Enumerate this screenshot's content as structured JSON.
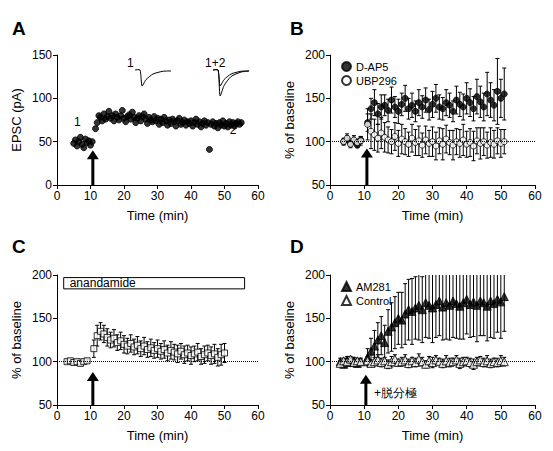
{
  "chart_data": [
    {
      "panel": "A",
      "type": "scatter",
      "x_label": "Time (min)",
      "y_label": "EPSC (pA)",
      "xlim": [
        0,
        60
      ],
      "xticks": [
        0,
        10,
        20,
        30,
        40,
        50,
        60
      ],
      "ylim": [
        0,
        150
      ],
      "yticks": [
        0,
        50,
        100,
        150
      ],
      "grid": false,
      "series": [
        {
          "color": "#000000",
          "marker": "filled_circle",
          "x": [
            5,
            5.5,
            6,
            6.5,
            7,
            7.5,
            8,
            8.5,
            9,
            9.5,
            10,
            10.5,
            11.5,
            12,
            12.5,
            13,
            13.5,
            14,
            14.5,
            15,
            15.5,
            16,
            16.5,
            17,
            17.5,
            18,
            18.5,
            19,
            19.5,
            20,
            20.5,
            21,
            21.5,
            22,
            22.5,
            23,
            23.5,
            24,
            24.5,
            25,
            25.5,
            26,
            26.5,
            27,
            27.5,
            28,
            28.5,
            29,
            29.5,
            30,
            30.5,
            31,
            31.5,
            32,
            32.5,
            33,
            33.5,
            34,
            34.5,
            35,
            35.5,
            36,
            36.5,
            37,
            37.5,
            38,
            38.5,
            39,
            39.5,
            40,
            40.5,
            41,
            41.5,
            42,
            42.5,
            43,
            43.5,
            44,
            44.5,
            45,
            45.5,
            46,
            46.5,
            47,
            47.5,
            48,
            48.5,
            49,
            49.5,
            50,
            50.5,
            51,
            51.5,
            52,
            52.5,
            53,
            53.5,
            54,
            54.5,
            55
          ],
          "values": [
            48,
            52,
            45,
            50,
            55,
            47,
            43,
            53,
            49,
            51,
            46,
            50,
            65,
            72,
            80,
            78,
            74,
            82,
            76,
            79,
            85,
            77,
            80,
            74,
            82,
            78,
            75,
            80,
            86,
            77,
            73,
            79,
            81,
            76,
            84,
            78,
            72,
            77,
            80,
            74,
            79,
            82,
            76,
            71,
            78,
            75,
            73,
            79,
            74,
            77,
            70,
            76,
            72,
            78,
            74,
            69,
            75,
            71,
            76,
            73,
            68,
            74,
            77,
            70,
            72,
            75,
            69,
            73,
            71,
            74,
            68,
            72,
            76,
            70,
            73,
            67,
            71,
            74,
            69,
            72,
            41,
            70,
            73,
            68,
            71,
            66,
            72,
            69,
            74,
            68,
            71,
            67,
            73,
            69,
            72,
            68,
            71,
            73,
            70,
            72
          ]
        }
      ],
      "arrow": {
        "x": 10.7,
        "y": [
          0,
          40
        ]
      },
      "annotations": [
        {
          "text": "1",
          "x": 5.1,
          "y": 72.7
        },
        {
          "text": "2",
          "x": 51.6,
          "y": 63.5
        },
        {
          "text": "1",
          "x": 20.9,
          "y": 140.8,
          "traces": 1
        },
        {
          "text": "1+2",
          "x": 44.2,
          "y": 140.8,
          "traces": 2
        }
      ]
    },
    {
      "panel": "B",
      "type": "scatter",
      "x_label": "Time (min)",
      "y_label": "% of baseline",
      "xlim": [
        0,
        60
      ],
      "xticks": [
        0,
        10,
        20,
        30,
        40,
        50,
        60
      ],
      "ylim": [
        50,
        200
      ],
      "yticks": [
        50,
        100,
        150,
        200
      ],
      "grid": false,
      "legend": "upper left",
      "baseline": 100,
      "series": [
        {
          "name": "D-AP5",
          "color": "#000000",
          "marker": "filled_circle",
          "x": [
            4,
            5,
            6,
            7,
            8,
            9,
            11,
            12,
            13,
            14,
            15,
            16,
            17,
            18,
            19,
            20,
            21,
            22,
            23,
            24,
            25,
            26,
            27,
            28,
            29,
            30,
            31,
            32,
            33,
            34,
            35,
            36,
            37,
            38,
            39,
            40,
            41,
            42,
            43,
            44,
            45,
            46,
            47,
            48,
            49,
            50,
            51
          ],
          "values": [
            100,
            103,
            98,
            101,
            96,
            102,
            122,
            138,
            145,
            132,
            140,
            142,
            136,
            148,
            140,
            135,
            143,
            150,
            138,
            142,
            135,
            145,
            140,
            148,
            137,
            143,
            150,
            140,
            138,
            145,
            142,
            135,
            148,
            143,
            140,
            150,
            145,
            138,
            152,
            146,
            140,
            155,
            148,
            142,
            158,
            150,
            155
          ],
          "errors": [
            3,
            4,
            3,
            4,
            3,
            4,
            10,
            12,
            15,
            12,
            14,
            12,
            13,
            15,
            12,
            14,
            13,
            15,
            12,
            14,
            12,
            15,
            13,
            14,
            12,
            15,
            16,
            14,
            13,
            15,
            14,
            12,
            16,
            14,
            15,
            18,
            16,
            14,
            20,
            18,
            16,
            25,
            20,
            18,
            38,
            22,
            30
          ]
        },
        {
          "name": "UBP296",
          "color": "#000000",
          "marker": "open_circle",
          "x": [
            4,
            5,
            6,
            7,
            8,
            9,
            11,
            12,
            13,
            14,
            15,
            16,
            17,
            18,
            19,
            20,
            21,
            22,
            23,
            24,
            25,
            26,
            27,
            28,
            29,
            30,
            31,
            32,
            33,
            34,
            35,
            36,
            37,
            38,
            39,
            40,
            41,
            42,
            43,
            44,
            45,
            46,
            47,
            48,
            49,
            50,
            51
          ],
          "values": [
            100,
            104,
            97,
            102,
            99,
            101,
            120,
            112,
            108,
            104,
            110,
            105,
            102,
            100,
            106,
            98,
            103,
            100,
            97,
            104,
            99,
            101,
            96,
            102,
            98,
            100,
            95,
            101,
            97,
            103,
            99,
            96,
            100,
            98,
            102,
            97,
            99,
            95,
            101,
            98,
            100,
            96,
            99,
            97,
            101,
            98,
            100
          ],
          "errors": [
            4,
            5,
            4,
            5,
            4,
            5,
            18,
            20,
            18,
            16,
            18,
            17,
            15,
            14,
            16,
            15,
            17,
            15,
            14,
            16,
            15,
            17,
            14,
            16,
            15,
            17,
            16,
            15,
            18,
            16,
            14,
            17,
            15,
            16,
            18,
            15,
            16,
            17,
            15,
            18,
            16,
            15,
            17,
            16,
            15,
            16,
            14
          ]
        }
      ],
      "arrow": {
        "x": 10.8,
        "y": [
          50,
          92
        ]
      }
    },
    {
      "panel": "C",
      "type": "scatter",
      "x_label": "Time (min)",
      "y_label": "% of baseline",
      "xlim": [
        0,
        60
      ],
      "xticks": [
        0,
        10,
        20,
        30,
        40,
        50,
        60
      ],
      "ylim": [
        50,
        200
      ],
      "yticks": [
        50,
        100,
        150,
        200
      ],
      "grid": false,
      "baseline": 100,
      "series": [
        {
          "color": "#000000",
          "marker": "open_square",
          "x": [
            3,
            4,
            5,
            6,
            7,
            8,
            9,
            11,
            12,
            13,
            14,
            15,
            16,
            17,
            18,
            19,
            20,
            21,
            22,
            23,
            24,
            25,
            26,
            27,
            28,
            29,
            30,
            31,
            32,
            33,
            34,
            35,
            36,
            37,
            38,
            39,
            40,
            41,
            42,
            43,
            44,
            45,
            46,
            47,
            48,
            49,
            50
          ],
          "values": [
            100,
            101,
            99,
            100,
            98,
            100,
            101,
            115,
            130,
            135,
            132,
            128,
            125,
            127,
            122,
            124,
            120,
            118,
            121,
            117,
            119,
            115,
            118,
            114,
            116,
            113,
            115,
            112,
            114,
            110,
            113,
            111,
            109,
            112,
            108,
            110,
            107,
            109,
            111,
            106,
            108,
            110,
            107,
            109,
            105,
            108,
            110
          ],
          "errors": [
            2,
            2,
            2,
            2,
            2,
            2,
            2,
            10,
            12,
            10,
            10,
            10,
            9,
            10,
            9,
            10,
            10,
            9,
            10,
            9,
            10,
            9,
            10,
            9,
            10,
            9,
            10,
            9,
            10,
            9,
            10,
            9,
            10,
            9,
            10,
            9,
            10,
            9,
            10,
            9,
            10,
            9,
            10,
            11,
            10,
            12,
            11
          ]
        }
      ],
      "box": {
        "text": "anandamide",
        "x": [
          2,
          56
        ],
        "y": [
          184,
          197
        ]
      },
      "arrow": {
        "x": 10.7,
        "y": [
          50,
          88
        ]
      }
    },
    {
      "panel": "D",
      "type": "scatter",
      "x_label": "Time (min)",
      "y_label": "% of baseline",
      "xlim": [
        0,
        60
      ],
      "xticks": [
        0,
        10,
        20,
        30,
        40,
        50,
        60
      ],
      "ylim": [
        50,
        200
      ],
      "yticks": [
        50,
        100,
        150,
        200
      ],
      "grid": false,
      "legend": "upper left",
      "baseline": 100,
      "series": [
        {
          "name": "AM281",
          "color": "#000000",
          "marker": "filled_triangle",
          "x": [
            3,
            4,
            5,
            6,
            7,
            8,
            9,
            11,
            12,
            13,
            14,
            15,
            16,
            17,
            18,
            19,
            20,
            21,
            22,
            23,
            24,
            25,
            26,
            27,
            28,
            29,
            30,
            31,
            32,
            33,
            34,
            35,
            36,
            37,
            38,
            39,
            40,
            41,
            42,
            43,
            44,
            45,
            46,
            47,
            48,
            49,
            50,
            51
          ],
          "values": [
            100,
            97,
            102,
            99,
            101,
            98,
            100,
            105,
            112,
            118,
            125,
            130,
            122,
            135,
            140,
            145,
            150,
            148,
            155,
            160,
            158,
            162,
            165,
            160,
            168,
            165,
            162,
            166,
            170,
            163,
            168,
            165,
            170,
            167,
            164,
            168,
            172,
            166,
            169,
            165,
            170,
            168,
            164,
            170,
            167,
            172,
            169,
            175
          ],
          "errors": [
            4,
            4,
            4,
            4,
            4,
            4,
            4,
            10,
            15,
            18,
            20,
            22,
            20,
            25,
            28,
            30,
            30,
            32,
            35,
            35,
            38,
            36,
            40,
            38,
            40,
            38,
            40,
            38,
            40,
            38,
            42,
            40,
            42,
            40,
            38,
            42,
            40,
            38,
            40,
            42,
            40,
            38,
            40,
            42,
            40,
            38,
            42,
            40
          ]
        },
        {
          "name": "Control",
          "color": "#000000",
          "marker": "open_triangle",
          "x": [
            3,
            4,
            5,
            6,
            7,
            8,
            9,
            11,
            12,
            13,
            14,
            15,
            16,
            17,
            18,
            19,
            20,
            21,
            22,
            23,
            24,
            25,
            26,
            27,
            28,
            29,
            30,
            31,
            32,
            33,
            34,
            35,
            36,
            37,
            38,
            39,
            40,
            41,
            42,
            43,
            44,
            45,
            46,
            47,
            48,
            49,
            50,
            51
          ],
          "values": [
            98,
            101,
            100,
            103,
            99,
            101,
            100,
            101,
            98,
            100,
            102,
            99,
            101,
            97,
            100,
            103,
            99,
            100,
            102,
            98,
            101,
            99,
            103,
            100,
            97,
            101,
            99,
            102,
            100,
            98,
            101,
            99,
            100,
            102,
            98,
            100,
            101,
            99,
            97,
            100,
            102,
            99,
            101,
            98,
            100,
            99,
            101,
            100
          ],
          "errors": [
            3,
            3,
            3,
            3,
            3,
            3,
            3,
            5,
            4,
            5,
            6,
            5,
            4,
            5,
            6,
            5,
            4,
            5,
            6,
            5,
            4,
            5,
            6,
            5,
            4,
            5,
            6,
            5,
            4,
            5,
            6,
            5,
            4,
            5,
            6,
            5,
            4,
            5,
            6,
            5,
            4,
            5,
            6,
            5,
            4,
            5,
            6,
            5
          ]
        }
      ],
      "arrow": {
        "x": 10.5,
        "y": [
          50,
          85
        ]
      },
      "annotations": [
        {
          "text": "+脱分極",
          "x": 12.9,
          "y": 64
        }
      ]
    }
  ]
}
